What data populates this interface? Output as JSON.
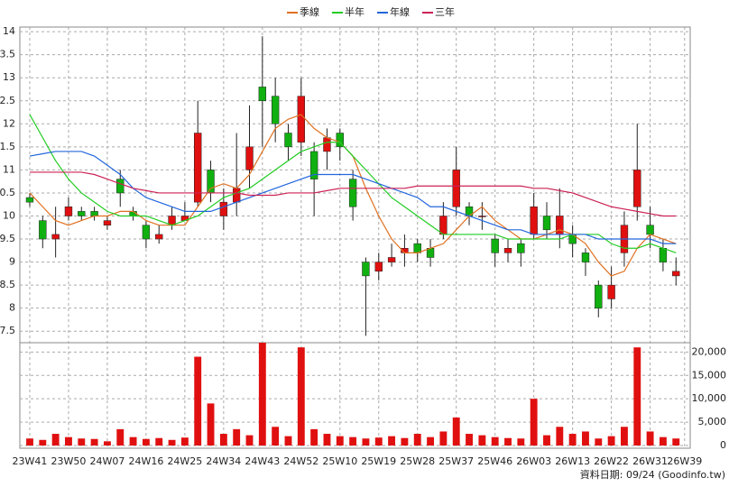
{
  "chart_data": {
    "type": "candlestick",
    "x": [
      0,
      3,
      6,
      9,
      12,
      15,
      18,
      21,
      24,
      27,
      30,
      33,
      36,
      39,
      42,
      45,
      48,
      51,
      54,
      57,
      60,
      63,
      66,
      69,
      72,
      75,
      78,
      81,
      84,
      87,
      90,
      93,
      96,
      99,
      102,
      105,
      108,
      111,
      114,
      117,
      120,
      123,
      126,
      129,
      132,
      135,
      138,
      141,
      144,
      147,
      150
    ],
    "open": [
      10.4,
      9.9,
      9.5,
      10.0,
      10.1,
      10.1,
      9.8,
      10.8,
      10.1,
      9.8,
      9.5,
      9.8,
      9.9,
      10.3,
      11.0,
      10.0,
      10.3,
      11.0,
      12.8,
      12.6,
      11.8,
      11.6,
      11.4,
      11.4,
      11.8,
      10.8,
      9.0,
      8.8,
      9.0,
      9.2,
      9.4,
      9.3,
      9.6,
      10.2,
      10.2,
      10.0,
      9.5,
      9.2,
      9.4,
      9.6,
      10.0,
      9.6,
      9.6,
      9.2,
      8.5,
      8.2,
      9.2,
      10.2,
      9.8,
      9.3,
      8.7
    ],
    "high": [
      10.5,
      10.0,
      10.2,
      10.4,
      10.2,
      10.2,
      10.0,
      11.0,
      10.2,
      9.9,
      9.8,
      10.2,
      10.3,
      12.5,
      11.2,
      10.6,
      11.8,
      12.4,
      13.9,
      13.0,
      12.0,
      13.0,
      11.6,
      11.9,
      11.9,
      11.0,
      9.1,
      9.2,
      9.4,
      9.6,
      9.5,
      9.5,
      10.3,
      11.5,
      10.3,
      10.3,
      9.6,
      9.5,
      9.5,
      10.5,
      10.3,
      10.6,
      9.8,
      9.3,
      8.6,
      8.9,
      10.1,
      12.0,
      10.2,
      9.5,
      9.1
    ],
    "low": [
      10.2,
      9.3,
      9.1,
      9.9,
      9.9,
      9.9,
      9.7,
      10.2,
      9.9,
      9.3,
      9.4,
      9.7,
      9.9,
      10.2,
      10.3,
      9.7,
      10.0,
      10.6,
      11.5,
      11.6,
      11.2,
      11.3,
      10.0,
      11.0,
      11.2,
      9.9,
      7.4,
      8.6,
      8.9,
      8.9,
      9.0,
      8.9,
      9.5,
      10.0,
      9.8,
      9.7,
      8.9,
      9.0,
      8.9,
      9.5,
      9.5,
      9.3,
      9.1,
      8.7,
      7.8,
      8.0,
      8.9,
      9.9,
      9.3,
      8.8,
      8.5
    ],
    "close": [
      10.3,
      9.5,
      9.6,
      10.2,
      10.0,
      10.0,
      9.9,
      10.5,
      10.0,
      9.5,
      9.6,
      10.0,
      10.0,
      11.8,
      10.5,
      10.3,
      10.6,
      11.5,
      12.5,
      12.0,
      11.5,
      12.6,
      10.8,
      11.7,
      11.5,
      10.2,
      8.7,
      9.0,
      9.1,
      9.3,
      9.2,
      9.1,
      10.0,
      11.0,
      10.0,
      10.0,
      9.2,
      9.3,
      9.2,
      10.2,
      9.7,
      10.0,
      9.4,
      9.0,
      8.0,
      8.5,
      9.8,
      11.0,
      9.6,
      9.0,
      8.8
    ],
    "volume": [
      1500,
      1200,
      2500,
      1800,
      1500,
      1400,
      900,
      3500,
      1800,
      1400,
      1600,
      1200,
      1700,
      19000,
      9000,
      2500,
      3500,
      2200,
      22000,
      4000,
      2000,
      21000,
      3500,
      2500,
      2000,
      1800,
      1500,
      1700,
      2000,
      1600,
      2500,
      1800,
      3000,
      6000,
      2500,
      2200,
      1800,
      1600,
      1500,
      10000,
      2200,
      4000,
      2500,
      3000,
      1500,
      2000,
      4000,
      21000,
      3000,
      1800,
      1500
    ],
    "up_color": "#e01010",
    "down_color": "#10b010",
    "volume_color": "#e01010",
    "series": [
      {
        "name": "季線",
        "color": "#e07020",
        "values": [
          10.5,
          10.2,
          9.9,
          9.8,
          9.9,
          10.0,
          10.0,
          10.1,
          10.1,
          9.9,
          9.8,
          9.8,
          9.8,
          10.2,
          10.6,
          10.7,
          10.6,
          10.9,
          11.4,
          11.9,
          12.1,
          12.2,
          11.9,
          11.7,
          11.6,
          11.3,
          10.6,
          10.0,
          9.5,
          9.2,
          9.2,
          9.3,
          9.4,
          9.7,
          10.0,
          10.2,
          9.9,
          9.7,
          9.5,
          9.5,
          9.6,
          9.7,
          9.6,
          9.4,
          9.0,
          8.7,
          8.8,
          9.3,
          9.6,
          9.5,
          9.4
        ]
      },
      {
        "name": "半年",
        "color": "#22cc22",
        "values": [
          12.2,
          11.7,
          11.2,
          10.8,
          10.5,
          10.3,
          10.1,
          10.0,
          10.0,
          10.0,
          9.9,
          9.8,
          9.9,
          10.0,
          10.2,
          10.4,
          10.5,
          10.6,
          10.8,
          11.0,
          11.2,
          11.4,
          11.5,
          11.6,
          11.6,
          11.3,
          11.0,
          10.7,
          10.4,
          10.2,
          10.0,
          9.8,
          9.6,
          9.6,
          9.6,
          9.6,
          9.6,
          9.5,
          9.5,
          9.5,
          9.5,
          9.5,
          9.6,
          9.6,
          9.6,
          9.4,
          9.3,
          9.3,
          9.4,
          9.3,
          9.2
        ]
      },
      {
        "name": "年線",
        "color": "#2266dd",
        "values": [
          11.3,
          11.35,
          11.4,
          11.4,
          11.4,
          11.3,
          11.1,
          10.9,
          10.6,
          10.4,
          10.3,
          10.2,
          10.1,
          10.1,
          10.1,
          10.2,
          10.3,
          10.4,
          10.5,
          10.6,
          10.7,
          10.8,
          10.9,
          10.9,
          10.9,
          10.9,
          10.8,
          10.7,
          10.6,
          10.5,
          10.4,
          10.2,
          10.2,
          10.1,
          10.0,
          9.9,
          9.8,
          9.7,
          9.7,
          9.6,
          9.6,
          9.6,
          9.6,
          9.6,
          9.5,
          9.5,
          9.5,
          9.5,
          9.5,
          9.4,
          9.4
        ]
      },
      {
        "name": "三年",
        "color": "#cc2255",
        "values": [
          10.95,
          10.95,
          10.95,
          10.95,
          10.95,
          10.9,
          10.8,
          10.7,
          10.6,
          10.55,
          10.5,
          10.5,
          10.5,
          10.5,
          10.5,
          10.5,
          10.5,
          10.45,
          10.45,
          10.45,
          10.5,
          10.5,
          10.5,
          10.55,
          10.6,
          10.6,
          10.6,
          10.6,
          10.6,
          10.6,
          10.65,
          10.65,
          10.65,
          10.65,
          10.65,
          10.65,
          10.65,
          10.65,
          10.65,
          10.6,
          10.6,
          10.55,
          10.5,
          10.4,
          10.3,
          10.2,
          10.15,
          10.1,
          10.05,
          10.0,
          10.0
        ]
      }
    ],
    "xlim": [
      -2.3,
      153.3
    ],
    "xticks": [
      {
        "value": 0,
        "label": "23W41"
      },
      {
        "value": 9,
        "label": "23W50"
      },
      {
        "value": 18,
        "label": "24W07"
      },
      {
        "value": 27,
        "label": "24W16"
      },
      {
        "value": 36,
        "label": "24W25"
      },
      {
        "value": 45,
        "label": "24W34"
      },
      {
        "value": 54,
        "label": "24W43"
      },
      {
        "value": 63,
        "label": "24W52"
      },
      {
        "value": 72,
        "label": "25W10"
      },
      {
        "value": 81,
        "label": "25W19"
      },
      {
        "value": 90,
        "label": "25W28"
      },
      {
        "value": 99,
        "label": "25W37"
      },
      {
        "value": 108,
        "label": "25W46"
      },
      {
        "value": 117,
        "label": "26W03"
      },
      {
        "value": 126,
        "label": "26W13"
      },
      {
        "value": 135,
        "label": "26W22"
      },
      {
        "value": 144,
        "label": "26W31"
      },
      {
        "value": 152,
        "label": "26W39"
      }
    ],
    "ylim": [
      7.25,
      14.1
    ],
    "yticks": [
      7.5,
      8,
      8.5,
      9,
      9.5,
      10,
      10.5,
      11,
      11.5,
      12,
      12.5,
      13,
      13.5,
      14
    ],
    "y2lim": [
      0,
      22000
    ],
    "y2ticks": [
      0,
      {
        "value": 5000,
        "label": "5,000"
      },
      {
        "value": 10000,
        "label": "10,000"
      },
      {
        "value": 15000,
        "label": "15,000"
      },
      {
        "value": 20000,
        "label": "20,000"
      }
    ],
    "grid": true,
    "footer": "資料日期: 09/24 (Goodinfo.tw)"
  }
}
